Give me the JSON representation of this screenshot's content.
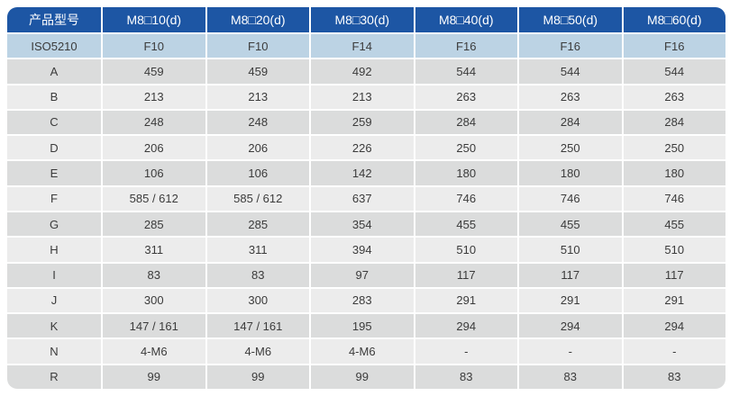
{
  "table": {
    "header": [
      "产品型号",
      "M8□10(d)",
      "M8□20(d)",
      "M8□30(d)",
      "M8□40(d)",
      "M8□50(d)",
      "M8□60(d)"
    ],
    "rows": [
      {
        "label": "ISO5210",
        "values": [
          "F10",
          "F10",
          "F14",
          "F16",
          "F16",
          "F16"
        ]
      },
      {
        "label": "A",
        "values": [
          "459",
          "459",
          "492",
          "544",
          "544",
          "544"
        ]
      },
      {
        "label": "B",
        "values": [
          "213",
          "213",
          "213",
          "263",
          "263",
          "263"
        ]
      },
      {
        "label": "C",
        "values": [
          "248",
          "248",
          "259",
          "284",
          "284",
          "284"
        ]
      },
      {
        "label": "D",
        "values": [
          "206",
          "206",
          "226",
          "250",
          "250",
          "250"
        ]
      },
      {
        "label": "E",
        "values": [
          "106",
          "106",
          "142",
          "180",
          "180",
          "180"
        ]
      },
      {
        "label": "F",
        "values": [
          "585 / 612",
          "585 / 612",
          "637",
          "746",
          "746",
          "746"
        ]
      },
      {
        "label": "G",
        "values": [
          "285",
          "285",
          "354",
          "455",
          "455",
          "455"
        ]
      },
      {
        "label": "H",
        "values": [
          "311",
          "311",
          "394",
          "510",
          "510",
          "510"
        ]
      },
      {
        "label": "I",
        "values": [
          "83",
          "83",
          "97",
          "117",
          "117",
          "117"
        ]
      },
      {
        "label": "J",
        "values": [
          "300",
          "300",
          "283",
          "291",
          "291",
          "291"
        ]
      },
      {
        "label": "K",
        "values": [
          "147 / 161",
          "147 / 161",
          "195",
          "294",
          "294",
          "294"
        ]
      },
      {
        "label": "N",
        "values": [
          "4-M6",
          "4-M6",
          "4-M6",
          "-",
          "-",
          "-"
        ]
      },
      {
        "label": "R",
        "values": [
          "99",
          "99",
          "99",
          "83",
          "83",
          "83"
        ]
      }
    ]
  },
  "colors": {
    "header_bg": "#1d56a4",
    "header_text": "#ffffff",
    "iso_row_bg": "#bcd3e4",
    "row_dark": "#dbdcdc",
    "row_light": "#ececec",
    "body_text": "#3b3b3b"
  }
}
